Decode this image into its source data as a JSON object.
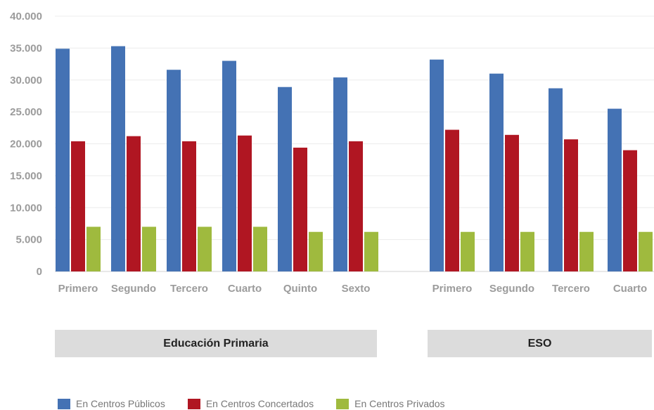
{
  "chart_data": {
    "type": "bar",
    "ylim": [
      0,
      40000
    ],
    "yticks": [
      0,
      5000,
      10000,
      15000,
      20000,
      25000,
      30000,
      35000,
      40000
    ],
    "ytick_labels": [
      "0",
      "5.000",
      "10.000",
      "15.000",
      "20.000",
      "25.000",
      "30.000",
      "35.000",
      "40.000"
    ],
    "grid": true,
    "legend_position": "bottom-left",
    "groups": [
      {
        "label": "Educación Primaria",
        "categories": [
          "Primero",
          "Segundo",
          "Tercero",
          "Cuarto",
          "Quinto",
          "Sexto"
        ],
        "series": [
          {
            "name": "En Centros Públicos",
            "color": "#4472b4",
            "values": [
              34900,
              35300,
              31600,
              33000,
              28900,
              30400
            ]
          },
          {
            "name": "En Centros Concertados",
            "color": "#b01622",
            "values": [
              20400,
              21200,
              20400,
              21300,
              19400,
              20400
            ]
          },
          {
            "name": "En Centros Privados",
            "color": "#9fba3e",
            "values": [
              7000,
              7000,
              7000,
              7000,
              6200,
              6200
            ]
          }
        ]
      },
      {
        "label": "ESO",
        "categories": [
          "Primero",
          "Segundo",
          "Tercero",
          "Cuarto"
        ],
        "series": [
          {
            "name": "En Centros Públicos",
            "color": "#4472b4",
            "values": [
              33200,
              31000,
              28700,
              25500
            ]
          },
          {
            "name": "En Centros Concertados",
            "color": "#b01622",
            "values": [
              22200,
              21400,
              20700,
              19000
            ]
          },
          {
            "name": "En Centros Privados",
            "color": "#9fba3e",
            "values": [
              6200,
              6200,
              6200,
              6200
            ]
          }
        ]
      }
    ]
  },
  "legend": [
    {
      "label": "En Centros Públicos",
      "color": "#4472b4"
    },
    {
      "label": "En Centros Concertados",
      "color": "#b01622"
    },
    {
      "label": "En Centros Privados",
      "color": "#9fba3e"
    }
  ]
}
